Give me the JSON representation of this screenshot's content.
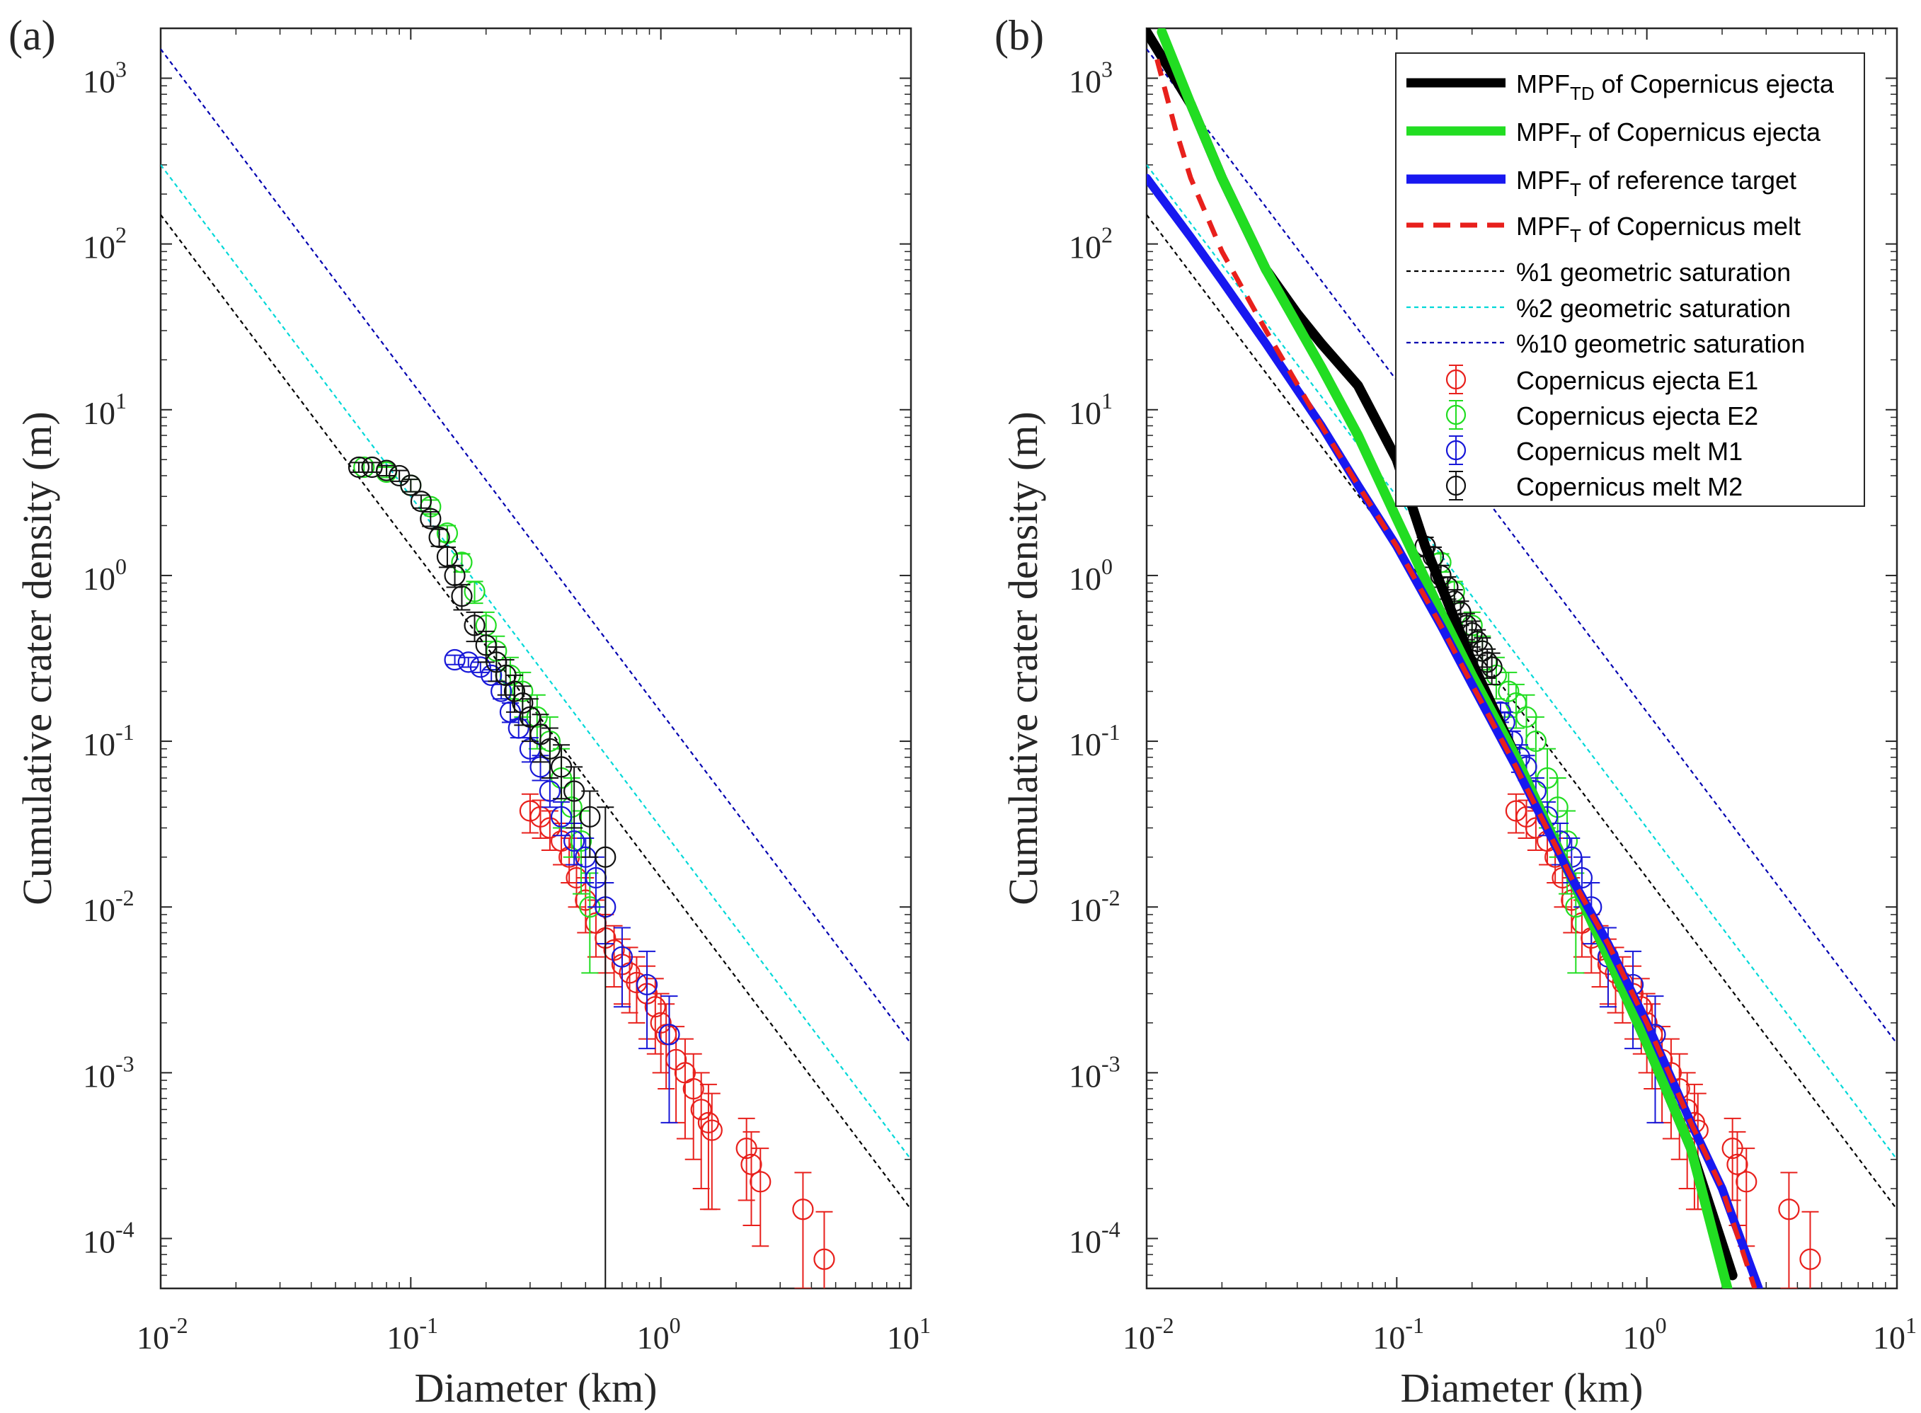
{
  "chart_data": [
    {
      "panel": "(a)",
      "type": "scatter",
      "xlabel": "Diameter (km)",
      "ylabel": "Cumulative crater density (m)",
      "xscale": "log",
      "yscale": "log",
      "xlim": [
        0.01,
        10
      ],
      "ylim": [
        5e-05,
        2000
      ],
      "xticks": [
        {
          "base": "10",
          "exp": "-2"
        },
        {
          "base": "10",
          "exp": "-1"
        },
        {
          "base": "10",
          "exp": "0"
        },
        {
          "base": "10",
          "exp": "1"
        }
      ],
      "yticks": [
        {
          "base": "10",
          "exp": "-4"
        },
        {
          "base": "10",
          "exp": "-3"
        },
        {
          "base": "10",
          "exp": "-2"
        },
        {
          "base": "10",
          "exp": "-1"
        },
        {
          "base": "10",
          "exp": "0"
        },
        {
          "base": "10",
          "exp": "1"
        },
        {
          "base": "10",
          "exp": "2"
        },
        {
          "base": "10",
          "exp": "3"
        }
      ],
      "reference_lines": [
        {
          "name": "%1 geometric saturation",
          "color": "#000000",
          "x": [
            0.01,
            10
          ],
          "y": [
            150,
            0.00015
          ]
        },
        {
          "name": "%2 geometric saturation",
          "color": "#00d8d8",
          "x": [
            0.01,
            10
          ],
          "y": [
            300,
            0.0003
          ]
        },
        {
          "name": "%10 geometric saturation",
          "color": "#0000b0",
          "x": [
            0.01,
            10
          ],
          "y": [
            1500,
            0.0015
          ]
        }
      ],
      "series": [
        {
          "name": "Copernicus ejecta E1",
          "color": "#e8201c",
          "x": [
            0.3,
            0.33,
            0.36,
            0.4,
            0.43,
            0.46,
            0.5,
            0.55,
            0.6,
            0.65,
            0.7,
            0.75,
            0.8,
            0.88,
            0.95,
            1.0,
            1.05,
            1.15,
            1.25,
            1.35,
            1.45,
            1.55,
            1.6,
            2.2,
            2.3,
            2.5,
            3.7,
            4.5
          ],
          "y": [
            0.038,
            0.035,
            0.03,
            0.025,
            0.02,
            0.015,
            0.011,
            0.008,
            0.0065,
            0.0055,
            0.0045,
            0.004,
            0.0035,
            0.003,
            0.0025,
            0.002,
            0.0017,
            0.0012,
            0.001,
            0.0008,
            0.0006,
            0.0005,
            0.00045,
            0.00035,
            0.00028,
            0.00022,
            0.00015,
            7.5e-05
          ],
          "yerr": [
            0.01,
            0.009,
            0.008,
            0.007,
            0.006,
            0.005,
            0.004,
            0.003,
            0.0025,
            0.0022,
            0.0019,
            0.0017,
            0.0015,
            0.0014,
            0.0012,
            0.001,
            0.0009,
            0.0007,
            0.0006,
            0.0005,
            0.0004,
            0.00035,
            0.0003,
            0.00018,
            0.00016,
            0.00013,
            0.0001,
            7e-05
          ]
        },
        {
          "name": "Copernicus ejecta E2",
          "color": "#22dd22",
          "x": [
            0.065,
            0.08,
            0.1,
            0.12,
            0.14,
            0.16,
            0.18,
            0.2,
            0.22,
            0.25,
            0.28,
            0.32,
            0.36,
            0.4,
            0.44,
            0.48,
            0.52
          ],
          "y": [
            4.5,
            4.2,
            3.5,
            2.6,
            1.8,
            1.2,
            0.8,
            0.5,
            0.35,
            0.25,
            0.2,
            0.14,
            0.1,
            0.06,
            0.04,
            0.025,
            0.01
          ],
          "yerr": [
            0.3,
            0.3,
            0.3,
            0.25,
            0.2,
            0.15,
            0.12,
            0.1,
            0.08,
            0.07,
            0.06,
            0.05,
            0.04,
            0.03,
            0.02,
            0.013,
            0.006
          ]
        },
        {
          "name": "Copernicus melt M1",
          "color": "#1818d8",
          "x": [
            0.15,
            0.17,
            0.19,
            0.21,
            0.23,
            0.25,
            0.27,
            0.3,
            0.33,
            0.36,
            0.4,
            0.45,
            0.5,
            0.55,
            0.6,
            0.7,
            0.88,
            1.08
          ],
          "y": [
            0.31,
            0.3,
            0.28,
            0.25,
            0.2,
            0.15,
            0.12,
            0.09,
            0.07,
            0.05,
            0.035,
            0.025,
            0.02,
            0.015,
            0.01,
            0.005,
            0.0034,
            0.0017
          ],
          "yerr": [
            0.02,
            0.02,
            0.02,
            0.02,
            0.02,
            0.02,
            0.015,
            0.015,
            0.012,
            0.01,
            0.008,
            0.007,
            0.006,
            0.005,
            0.004,
            0.0025,
            0.002,
            0.0012
          ]
        },
        {
          "name": "Copernicus melt M2",
          "color": "#111111",
          "x": [
            0.062,
            0.07,
            0.08,
            0.09,
            0.1,
            0.11,
            0.12,
            0.13,
            0.14,
            0.15,
            0.16,
            0.18,
            0.2,
            0.22,
            0.24,
            0.26,
            0.28,
            0.3,
            0.33,
            0.36,
            0.4,
            0.45,
            0.52,
            0.6
          ],
          "y": [
            4.5,
            4.5,
            4.3,
            4.0,
            3.5,
            2.8,
            2.2,
            1.7,
            1.3,
            1.0,
            0.75,
            0.5,
            0.38,
            0.3,
            0.25,
            0.2,
            0.17,
            0.14,
            0.11,
            0.09,
            0.07,
            0.05,
            0.035,
            0.02
          ],
          "yerr": [
            0.3,
            0.3,
            0.3,
            0.3,
            0.3,
            0.25,
            0.22,
            0.2,
            0.18,
            0.15,
            0.13,
            0.1,
            0.08,
            0.07,
            0.06,
            0.05,
            0.045,
            0.04,
            0.035,
            0.03,
            0.025,
            0.02,
            0.015,
            0.02
          ]
        }
      ]
    },
    {
      "panel": "(b)",
      "type": "line",
      "xlabel": "Diameter (km)",
      "ylabel": "Cumulative crater density (m)",
      "xscale": "log",
      "yscale": "log",
      "xlim": [
        0.01,
        10
      ],
      "ylim": [
        5e-05,
        2000
      ],
      "xticks": [
        {
          "base": "10",
          "exp": "-2"
        },
        {
          "base": "10",
          "exp": "-1"
        },
        {
          "base": "10",
          "exp": "0"
        },
        {
          "base": "10",
          "exp": "1"
        }
      ],
      "yticks": [
        {
          "base": "10",
          "exp": "-4"
        },
        {
          "base": "10",
          "exp": "-3"
        },
        {
          "base": "10",
          "exp": "-2"
        },
        {
          "base": "10",
          "exp": "-1"
        },
        {
          "base": "10",
          "exp": "0"
        },
        {
          "base": "10",
          "exp": "1"
        },
        {
          "base": "10",
          "exp": "2"
        },
        {
          "base": "10",
          "exp": "3"
        }
      ],
      "legend_position": "top-right",
      "legend": [
        {
          "label": "MPF",
          "sub": "TD",
          "rest": " of Copernicus ejecta",
          "color": "#000000",
          "kind": "thick"
        },
        {
          "label": "MPF",
          "sub": "T",
          "rest": " of Copernicus ejecta",
          "color": "#22dd22",
          "kind": "thick"
        },
        {
          "label": "MPF",
          "sub": "T",
          "rest": " of reference target",
          "color": "#1818f0",
          "kind": "thick"
        },
        {
          "label": "MPF",
          "sub": "T",
          "rest": " of Copernicus melt",
          "color": "#e8201c",
          "kind": "dashed"
        },
        {
          "label": "%1 geometric saturation",
          "color": "#000000",
          "kind": "thin-dashed"
        },
        {
          "label": "%2 geometric saturation",
          "color": "#00d8d8",
          "kind": "thin-dashed"
        },
        {
          "label": "%10 geometric saturation",
          "color": "#0000b0",
          "kind": "thin-dashed"
        },
        {
          "label": "Copernicus ejecta E1",
          "color": "#e8201c",
          "kind": "marker"
        },
        {
          "label": "Copernicus ejecta E2",
          "color": "#22dd22",
          "kind": "marker"
        },
        {
          "label": "Copernicus melt M1",
          "color": "#1818d8",
          "kind": "marker"
        },
        {
          "label": "Copernicus melt M2",
          "color": "#111111",
          "kind": "marker"
        }
      ],
      "fit_lines": [
        {
          "name": "MPF_TD of Copernicus ejecta",
          "color": "#000000",
          "x": [
            0.01,
            0.015,
            0.02,
            0.03,
            0.04,
            0.05,
            0.07,
            0.1,
            0.13,
            0.2,
            0.3,
            0.5,
            0.7,
            1.0,
            1.5,
            2.2
          ],
          "y": [
            1900,
            700,
            250,
            70,
            38,
            25,
            14,
            5,
            1.5,
            0.3,
            0.08,
            0.015,
            0.005,
            0.0015,
            0.00035,
            6e-05
          ]
        },
        {
          "name": "MPF_T of Copernicus ejecta",
          "color": "#22dd22",
          "x": [
            0.0115,
            0.015,
            0.02,
            0.03,
            0.05,
            0.07,
            0.1,
            0.15,
            0.2,
            0.3,
            0.5,
            0.7,
            1.0,
            1.5,
            2.1
          ],
          "y": [
            1900,
            700,
            250,
            70,
            18,
            7,
            2.2,
            0.6,
            0.25,
            0.08,
            0.015,
            0.005,
            0.0015,
            0.00035,
            5e-05
          ]
        },
        {
          "name": "MPF_T of reference target",
          "color": "#1818f0",
          "x": [
            0.01,
            0.015,
            0.02,
            0.03,
            0.05,
            0.07,
            0.1,
            0.15,
            0.2,
            0.3,
            0.5,
            0.7,
            1.0,
            1.5,
            2.0,
            2.8
          ],
          "y": [
            250,
            110,
            60,
            25,
            8,
            3.5,
            1.5,
            0.5,
            0.22,
            0.07,
            0.015,
            0.006,
            0.002,
            0.0005,
            0.0002,
            5e-05
          ]
        },
        {
          "name": "MPF_T of Copernicus melt",
          "color": "#e8201c",
          "x": [
            0.011,
            0.013,
            0.015,
            0.02,
            0.03,
            0.05,
            0.07,
            0.1,
            0.15,
            0.2,
            0.3,
            0.5,
            0.7,
            1.0,
            1.5,
            2.0,
            2.7
          ],
          "y": [
            1300,
            500,
            250,
            90,
            30,
            8,
            3.5,
            1.5,
            0.5,
            0.22,
            0.07,
            0.015,
            0.006,
            0.002,
            0.0005,
            0.0002,
            5e-05
          ]
        }
      ],
      "reference_lines": [
        {
          "name": "%1 geometric saturation",
          "color": "#000000",
          "x": [
            0.01,
            10
          ],
          "y": [
            150,
            0.00015
          ]
        },
        {
          "name": "%2 geometric saturation",
          "color": "#00d8d8",
          "x": [
            0.01,
            10
          ],
          "y": [
            300,
            0.0003
          ]
        },
        {
          "name": "%10 geometric saturation",
          "color": "#0000b0",
          "x": [
            0.01,
            10
          ],
          "y": [
            1500,
            0.0015
          ]
        }
      ],
      "series": [
        {
          "name": "Copernicus ejecta E1",
          "color": "#e8201c",
          "x": [
            0.3,
            0.33,
            0.36,
            0.4,
            0.43,
            0.46,
            0.5,
            0.55,
            0.6,
            0.65,
            0.7,
            0.75,
            0.8,
            0.88,
            0.95,
            1.0,
            1.05,
            1.15,
            1.25,
            1.35,
            1.45,
            1.55,
            1.6,
            2.2,
            2.3,
            2.5,
            3.7,
            4.5
          ],
          "y": [
            0.038,
            0.035,
            0.03,
            0.025,
            0.02,
            0.015,
            0.011,
            0.008,
            0.0065,
            0.0055,
            0.0045,
            0.004,
            0.0035,
            0.003,
            0.0025,
            0.002,
            0.0017,
            0.0012,
            0.001,
            0.0008,
            0.0006,
            0.0005,
            0.00045,
            0.00035,
            0.00028,
            0.00022,
            0.00015,
            7.5e-05
          ],
          "yerr": [
            0.01,
            0.009,
            0.008,
            0.007,
            0.006,
            0.005,
            0.004,
            0.003,
            0.0025,
            0.0022,
            0.0019,
            0.0017,
            0.0015,
            0.0014,
            0.0012,
            0.001,
            0.0009,
            0.0007,
            0.0006,
            0.0005,
            0.0004,
            0.00035,
            0.0003,
            0.00018,
            0.00016,
            0.00013,
            0.0001,
            7e-05
          ]
        },
        {
          "name": "Copernicus ejecta E2",
          "color": "#22dd22",
          "x": [
            0.15,
            0.17,
            0.2,
            0.22,
            0.25,
            0.28,
            0.3,
            0.33,
            0.36,
            0.4,
            0.44,
            0.48,
            0.52
          ],
          "y": [
            1.2,
            0.8,
            0.5,
            0.35,
            0.25,
            0.2,
            0.17,
            0.14,
            0.1,
            0.06,
            0.04,
            0.025,
            0.01
          ],
          "yerr": [
            0.15,
            0.12,
            0.1,
            0.08,
            0.07,
            0.06,
            0.05,
            0.05,
            0.04,
            0.03,
            0.02,
            0.013,
            0.006
          ]
        },
        {
          "name": "Copernicus melt M1",
          "color": "#1818d8",
          "x": [
            0.26,
            0.27,
            0.29,
            0.31,
            0.33,
            0.36,
            0.4,
            0.45,
            0.5,
            0.55,
            0.6,
            0.7,
            0.88,
            1.08
          ],
          "y": [
            0.15,
            0.13,
            0.1,
            0.08,
            0.07,
            0.05,
            0.035,
            0.025,
            0.02,
            0.015,
            0.01,
            0.005,
            0.0034,
            0.0017
          ],
          "yerr": [
            0.02,
            0.02,
            0.015,
            0.015,
            0.012,
            0.01,
            0.008,
            0.007,
            0.006,
            0.005,
            0.004,
            0.0025,
            0.002,
            0.0012
          ]
        },
        {
          "name": "Copernicus melt M2",
          "color": "#111111",
          "x": [
            0.13,
            0.14,
            0.15,
            0.16,
            0.17,
            0.18,
            0.19,
            0.2,
            0.21,
            0.22,
            0.23,
            0.24
          ],
          "y": [
            1.5,
            1.3,
            1.0,
            0.85,
            0.7,
            0.6,
            0.5,
            0.45,
            0.4,
            0.35,
            0.3,
            0.28
          ],
          "yerr": [
            0.2,
            0.18,
            0.15,
            0.13,
            0.12,
            0.1,
            0.09,
            0.08,
            0.07,
            0.07,
            0.06,
            0.06
          ]
        }
      ]
    }
  ]
}
